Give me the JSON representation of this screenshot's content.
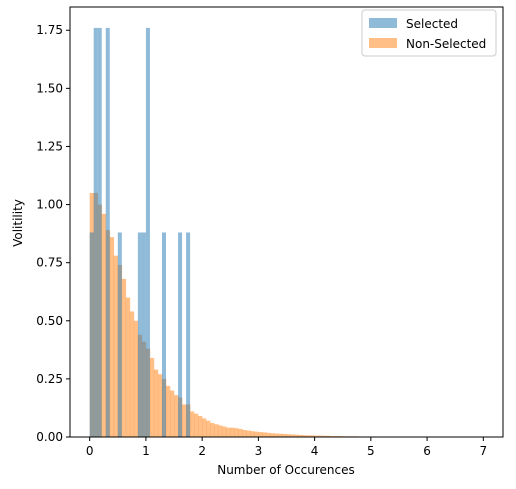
{
  "chart_data": {
    "type": "histogram",
    "title": "",
    "xlabel": "Number of Occurences",
    "ylabel": "Volitility",
    "xlim": [
      -0.35,
      7.35
    ],
    "ylim": [
      0,
      1.85
    ],
    "xticks": [
      0,
      1,
      2,
      3,
      4,
      5,
      6,
      7
    ],
    "yticks": [
      0.0,
      0.25,
      0.5,
      0.75,
      1.0,
      1.25,
      1.5,
      1.75
    ],
    "ytick_labels": [
      "0.00",
      "0.25",
      "0.50",
      "0.75",
      "1.00",
      "1.25",
      "1.50",
      "1.75"
    ],
    "legend": {
      "position": "top-right",
      "entries": [
        {
          "label": "Selected",
          "color": "#1f77b4"
        },
        {
          "label": "Non-Selected",
          "color": "#ff7f0e"
        }
      ]
    },
    "series": [
      {
        "name": "Selected",
        "color": "#1f77b4",
        "alpha": 0.5,
        "bin_width": 0.0714,
        "bars": [
          {
            "x": 0.0,
            "y": 0.88
          },
          {
            "x": 0.0714,
            "y": 1.76
          },
          {
            "x": 0.1428,
            "y": 1.76
          },
          {
            "x": 0.2857,
            "y": 1.76
          },
          {
            "x": 0.5,
            "y": 0.88
          },
          {
            "x": 0.8571,
            "y": 0.88
          },
          {
            "x": 0.9285,
            "y": 0.88
          },
          {
            "x": 1.0,
            "y": 1.76
          },
          {
            "x": 1.2857,
            "y": 0.88
          },
          {
            "x": 1.5714,
            "y": 0.88
          },
          {
            "x": 1.7142,
            "y": 0.88
          }
        ]
      },
      {
        "name": "Non-Selected",
        "color": "#ff7f0e",
        "alpha": 0.5,
        "bin_start": 0.0,
        "bin_width": 0.0714,
        "values": [
          1.05,
          1.05,
          1.0,
          0.96,
          0.89,
          0.86,
          0.78,
          0.74,
          0.68,
          0.6,
          0.54,
          0.5,
          0.44,
          0.41,
          0.38,
          0.34,
          0.29,
          0.27,
          0.25,
          0.22,
          0.2,
          0.18,
          0.17,
          0.14,
          0.14,
          0.11,
          0.1,
          0.09,
          0.08,
          0.07,
          0.06,
          0.055,
          0.05,
          0.045,
          0.04,
          0.04,
          0.038,
          0.035,
          0.03,
          0.028,
          0.025,
          0.023,
          0.021,
          0.02,
          0.018,
          0.016,
          0.015,
          0.014,
          0.013,
          0.012,
          0.011,
          0.01,
          0.009,
          0.008,
          0.007,
          0.007,
          0.006,
          0.006,
          0.005,
          0.005,
          0.004,
          0.004,
          0.004,
          0.003,
          0.003,
          0.003,
          0.003,
          0.002,
          0.002,
          0.002,
          0.002,
          0.002,
          0.002,
          0.002,
          0.002,
          0.0015,
          0.0015,
          0.0015,
          0.0015,
          0.0015,
          0.001,
          0.001,
          0.001,
          0.001,
          0.001,
          0.001,
          0.001,
          0.001,
          0.001,
          0.001,
          0.001,
          0.001,
          0.001,
          0.001,
          0.001,
          0.001,
          0.001,
          0.001,
          0.001,
          0.001
        ]
      }
    ]
  }
}
